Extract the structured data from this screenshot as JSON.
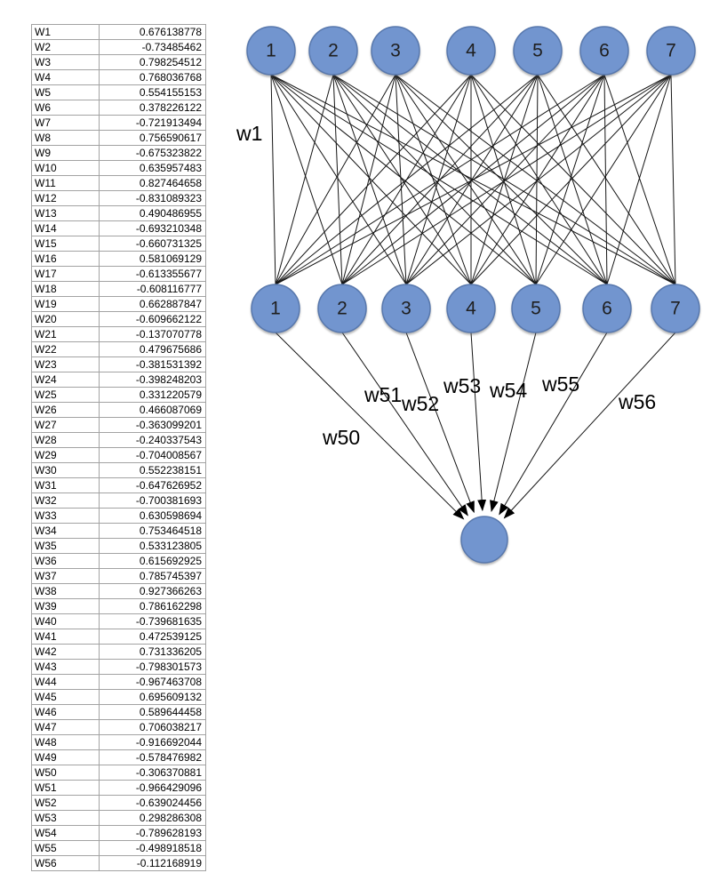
{
  "weights_table": {
    "rows": [
      {
        "name": "W1",
        "value": "0.676138778"
      },
      {
        "name": "W2",
        "value": "-0.73485462"
      },
      {
        "name": "W3",
        "value": "0.798254512"
      },
      {
        "name": "W4",
        "value": "0.768036768"
      },
      {
        "name": "W5",
        "value": "0.554155153"
      },
      {
        "name": "W6",
        "value": "0.378226122"
      },
      {
        "name": "W7",
        "value": "-0.721913494"
      },
      {
        "name": "W8",
        "value": "0.756590617"
      },
      {
        "name": "W9",
        "value": "-0.675323822"
      },
      {
        "name": "W10",
        "value": "0.635957483"
      },
      {
        "name": "W11",
        "value": "0.827464658"
      },
      {
        "name": "W12",
        "value": "-0.831089323"
      },
      {
        "name": "W13",
        "value": "0.490486955"
      },
      {
        "name": "W14",
        "value": "-0.693210348"
      },
      {
        "name": "W15",
        "value": "-0.660731325"
      },
      {
        "name": "W16",
        "value": "0.581069129"
      },
      {
        "name": "W17",
        "value": "-0.613355677"
      },
      {
        "name": "W18",
        "value": "-0.608116777"
      },
      {
        "name": "W19",
        "value": "0.662887847"
      },
      {
        "name": "W20",
        "value": "-0.609662122"
      },
      {
        "name": "W21",
        "value": "-0.137070778"
      },
      {
        "name": "W22",
        "value": "0.479675686"
      },
      {
        "name": "W23",
        "value": "-0.381531392"
      },
      {
        "name": "W24",
        "value": "-0.398248203"
      },
      {
        "name": "W25",
        "value": "0.331220579"
      },
      {
        "name": "W26",
        "value": "0.466087069"
      },
      {
        "name": "W27",
        "value": "-0.363099201"
      },
      {
        "name": "W28",
        "value": "-0.240337543"
      },
      {
        "name": "W29",
        "value": "-0.704008567"
      },
      {
        "name": "W30",
        "value": "0.552238151"
      },
      {
        "name": "W31",
        "value": "-0.647626952"
      },
      {
        "name": "W32",
        "value": "-0.700381693"
      },
      {
        "name": "W33",
        "value": "0.630598694"
      },
      {
        "name": "W34",
        "value": "0.753464518"
      },
      {
        "name": "W35",
        "value": "0.533123805"
      },
      {
        "name": "W36",
        "value": "0.615692925"
      },
      {
        "name": "W37",
        "value": "0.785745397"
      },
      {
        "name": "W38",
        "value": "0.927366263"
      },
      {
        "name": "W39",
        "value": "0.786162298"
      },
      {
        "name": "W40",
        "value": "-0.739681635"
      },
      {
        "name": "W41",
        "value": "0.472539125"
      },
      {
        "name": "W42",
        "value": "0.731336205"
      },
      {
        "name": "W43",
        "value": "-0.798301573"
      },
      {
        "name": "W44",
        "value": "-0.967463708"
      },
      {
        "name": "W45",
        "value": "0.695609132"
      },
      {
        "name": "W46",
        "value": "0.589644458"
      },
      {
        "name": "W47",
        "value": "0.706038217"
      },
      {
        "name": "W48",
        "value": "-0.916692044"
      },
      {
        "name": "W49",
        "value": "-0.578476982"
      },
      {
        "name": "W50",
        "value": "-0.306370881"
      },
      {
        "name": "W51",
        "value": "-0.966429096"
      },
      {
        "name": "W52",
        "value": "-0.639024456"
      },
      {
        "name": "W53",
        "value": "0.298286308"
      },
      {
        "name": "W54",
        "value": "-0.789628193"
      },
      {
        "name": "W55",
        "value": "-0.498918518"
      },
      {
        "name": "W56",
        "value": "-0.112168919"
      }
    ]
  },
  "network": {
    "layer1_labels": [
      "1",
      "2",
      "3",
      "4",
      "5",
      "6",
      "7"
    ],
    "layer2_labels": [
      "1",
      "2",
      "3",
      "4",
      "5",
      "6",
      "7"
    ],
    "edge_labels": [
      "w1",
      "w50",
      "w51",
      "w52",
      "w53",
      "w54",
      "w55",
      "w56"
    ],
    "node_fill": "#7295cf",
    "node_stroke": "#5878ad"
  }
}
